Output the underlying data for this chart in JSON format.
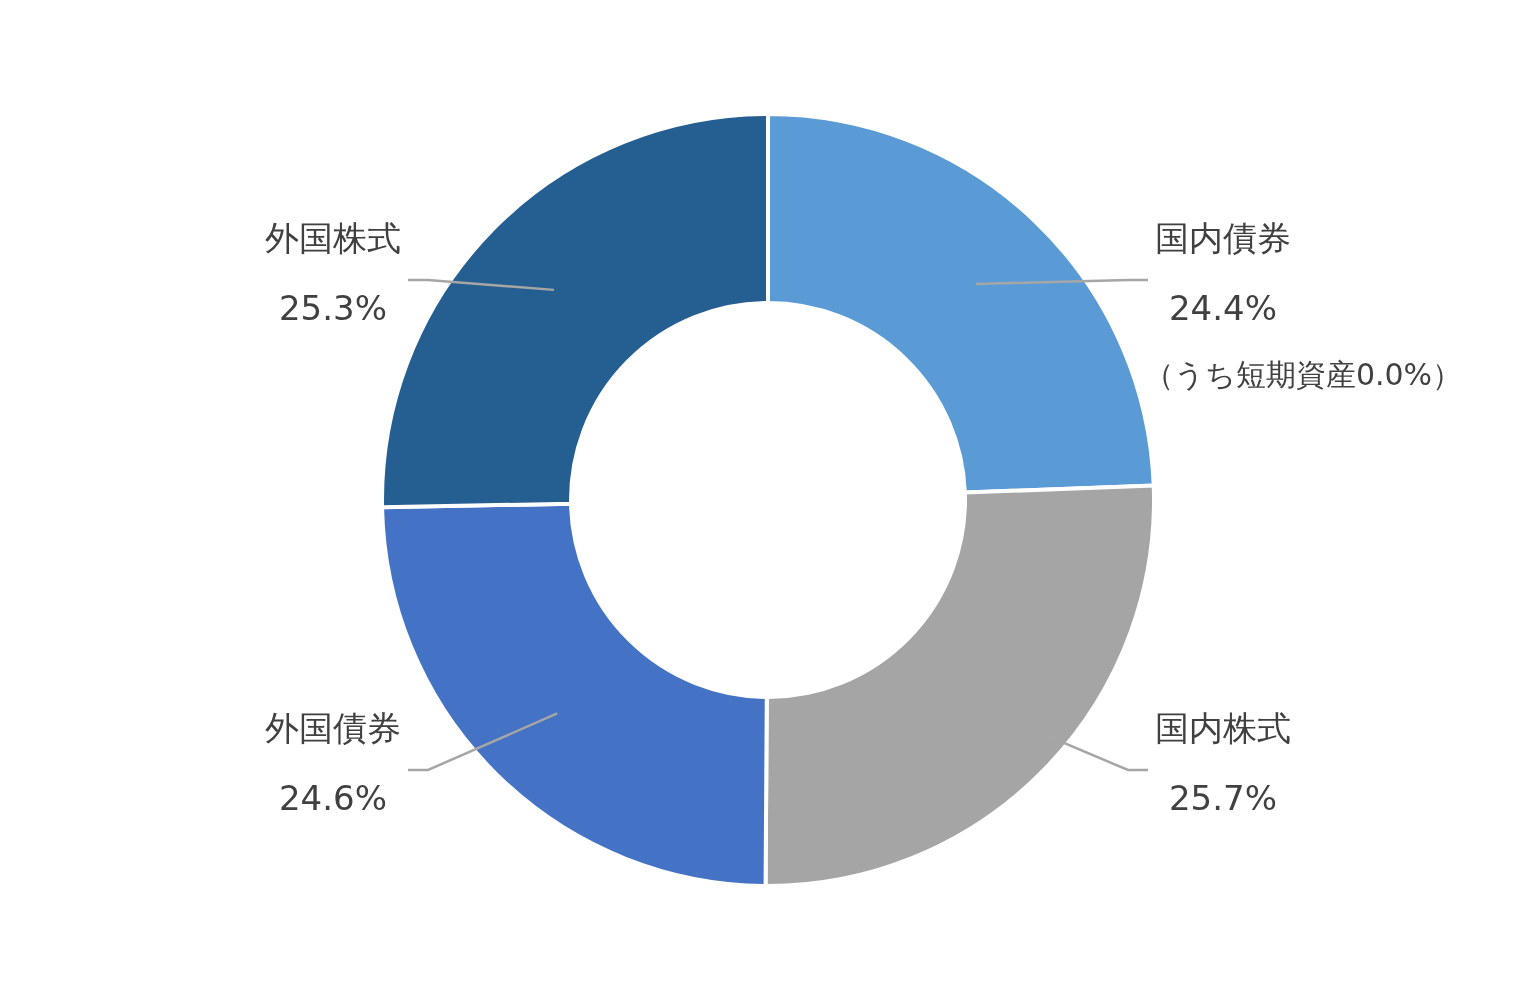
{
  "chart_data": {
    "type": "donut",
    "categories": [
      "国内債券",
      "国内株式",
      "外国債券",
      "外国株式"
    ],
    "values": [
      24.4,
      25.7,
      24.6,
      25.3
    ],
    "value_labels": [
      "24.4%",
      "25.7%",
      "24.6%",
      "25.3%"
    ],
    "colors": [
      "#5b9bd5",
      "#a5a5a5",
      "#4472c4",
      "#255e91"
    ],
    "annotations": [
      "（うち短期資産0.0%）"
    ]
  }
}
